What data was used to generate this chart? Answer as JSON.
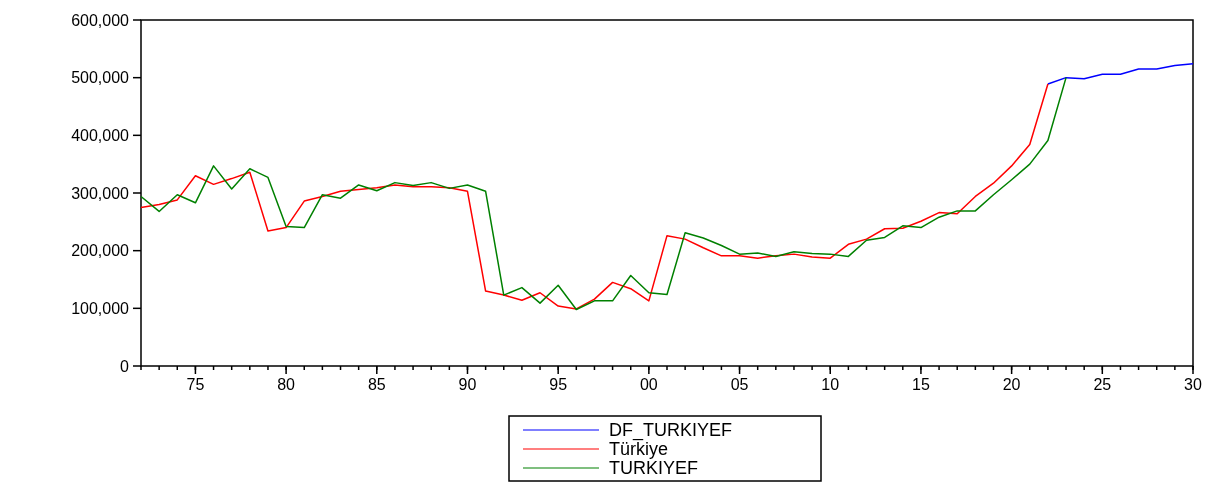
{
  "chart_data": {
    "type": "line",
    "xlim": [
      1972,
      2030
    ],
    "ylim": [
      0,
      600000
    ],
    "xticks": [
      {
        "value": 1975,
        "label": "75"
      },
      {
        "value": 1980,
        "label": "80"
      },
      {
        "value": 1985,
        "label": "85"
      },
      {
        "value": 1990,
        "label": "90"
      },
      {
        "value": 1995,
        "label": "95"
      },
      {
        "value": 2000,
        "label": "00"
      },
      {
        "value": 2005,
        "label": "05"
      },
      {
        "value": 2010,
        "label": "10"
      },
      {
        "value": 2015,
        "label": "15"
      },
      {
        "value": 2020,
        "label": "20"
      },
      {
        "value": 2025,
        "label": "25"
      },
      {
        "value": 2030,
        "label": "30"
      }
    ],
    "yticks": [
      {
        "value": 0,
        "label": "0"
      },
      {
        "value": 100000,
        "label": "100,000"
      },
      {
        "value": 200000,
        "label": "200,000"
      },
      {
        "value": 300000,
        "label": "300,000"
      },
      {
        "value": 400000,
        "label": "400,000"
      },
      {
        "value": 500000,
        "label": "500,000"
      },
      {
        "value": 600000,
        "label": "600,000"
      }
    ],
    "legend": "bottom",
    "grid": false,
    "series": [
      {
        "name": "DF_TURKIYEF",
        "color": "#0000ff",
        "x": [
          2022,
          2023,
          2024,
          2025,
          2026,
          2027,
          2028,
          2029,
          2030
        ],
        "values": [
          489000,
          500000,
          498000,
          506000,
          506000,
          515000,
          515000,
          521000,
          524000
        ]
      },
      {
        "name": "Türkiye",
        "color": "#ff0000",
        "x": [
          1972,
          1973,
          1974,
          1975,
          1976,
          1977,
          1978,
          1979,
          1980,
          1981,
          1982,
          1983,
          1984,
          1985,
          1986,
          1987,
          1988,
          1989,
          1990,
          1991,
          1992,
          1993,
          1994,
          1995,
          1996,
          1997,
          1998,
          1999,
          2000,
          2001,
          2002,
          2003,
          2004,
          2005,
          2006,
          2007,
          2008,
          2009,
          2010,
          2011,
          2012,
          2013,
          2014,
          2015,
          2016,
          2017,
          2018,
          2019,
          2020,
          2021,
          2022
        ],
        "values": [
          275000,
          280000,
          288000,
          330000,
          315000,
          325000,
          336000,
          234000,
          240000,
          286000,
          294000,
          303000,
          306000,
          309000,
          314000,
          311000,
          311000,
          309000,
          303000,
          130000,
          123000,
          114000,
          127000,
          104000,
          99000,
          116000,
          145000,
          134000,
          113000,
          226000,
          220000,
          205000,
          191000,
          191000,
          187000,
          191000,
          194000,
          189000,
          187000,
          211000,
          220000,
          238000,
          239000,
          251000,
          266000,
          264000,
          294000,
          317000,
          347000,
          384000,
          489000
        ]
      },
      {
        "name": "TURKIYEF",
        "color": "#008000",
        "x": [
          1972,
          1973,
          1974,
          1975,
          1976,
          1977,
          1978,
          1979,
          1980,
          1981,
          1982,
          1983,
          1984,
          1985,
          1986,
          1987,
          1988,
          1989,
          1990,
          1991,
          1992,
          1993,
          1994,
          1995,
          1996,
          1997,
          1998,
          1999,
          2000,
          2001,
          2002,
          2003,
          2004,
          2005,
          2006,
          2007,
          2008,
          2009,
          2010,
          2011,
          2012,
          2013,
          2014,
          2015,
          2016,
          2017,
          2018,
          2019,
          2020,
          2021,
          2022,
          2023
        ],
        "values": [
          294000,
          268000,
          297000,
          283000,
          347000,
          307000,
          342000,
          327000,
          242000,
          240000,
          297000,
          291000,
          314000,
          304000,
          318000,
          313000,
          318000,
          308000,
          314000,
          303000,
          123000,
          136000,
          109000,
          140000,
          98000,
          113000,
          113000,
          157000,
          127000,
          124000,
          231000,
          222000,
          209000,
          194000,
          196000,
          190000,
          198000,
          195000,
          194000,
          190000,
          218000,
          223000,
          243000,
          240000,
          258000,
          269000,
          269000,
          297000,
          323000,
          350000,
          391000,
          500000
        ]
      }
    ]
  }
}
